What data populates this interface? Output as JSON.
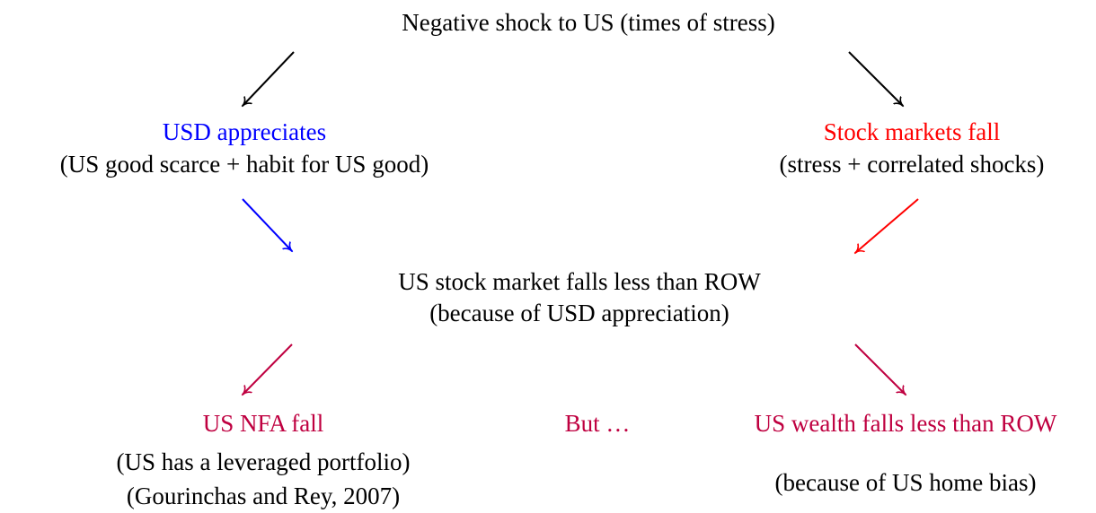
{
  "nodes": [
    {
      "label": "Negative shock to US (times of stress)"
    },
    {
      "label": "USD appreciates",
      "detail": "(US good scarce + habit for US good)"
    },
    {
      "label": "Stock markets fall",
      "detail": "(stress + correlated shocks)"
    },
    {
      "label": "US stock market falls less than ROW",
      "detail": "(because of USD appreciation)"
    },
    {
      "label": "US NFA fall",
      "detail": "(US has a leveraged portfolio)",
      "citation": "(Gourinchas and Rey, 2007)"
    },
    {
      "label": "But …"
    },
    {
      "label": "US wealth falls less than ROW",
      "detail": "(because of US home bias)"
    }
  ]
}
